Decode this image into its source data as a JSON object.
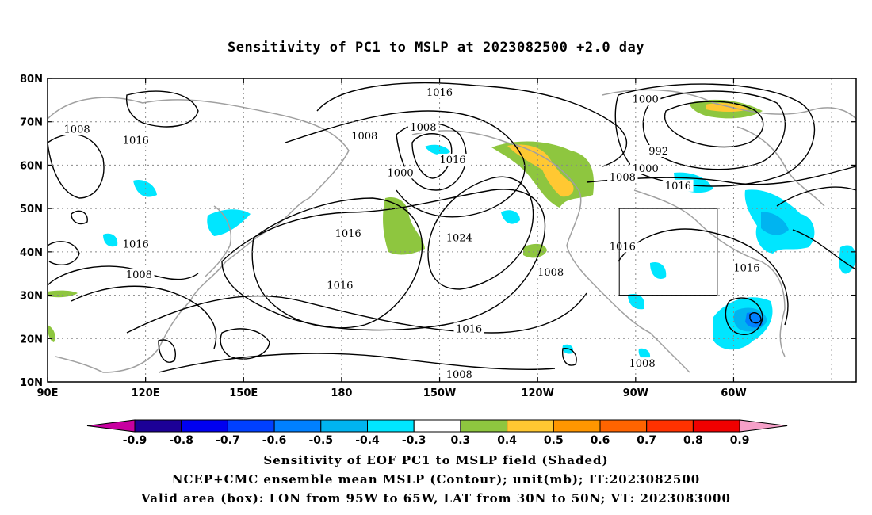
{
  "title": "Sensitivity of PC1 to MSLP at 2023082500 +2.0 day",
  "lat_labels": [
    "80N",
    "70N",
    "60N",
    "50N",
    "40N",
    "30N",
    "20N",
    "10N"
  ],
  "lon_labels": [
    "90E",
    "120E",
    "150E",
    "180",
    "150W",
    "120W",
    "90W",
    "60W"
  ],
  "contour_labels": [
    {
      "text": "1016",
      "lon": -150,
      "lat": 76.5
    },
    {
      "text": "1008",
      "lon": -155,
      "lat": 68.5
    },
    {
      "text": "1008",
      "lon": -173,
      "lat": 66.5
    },
    {
      "text": "1000",
      "lon": -162,
      "lat": 58
    },
    {
      "text": "1016",
      "lon": -146,
      "lat": 61
    },
    {
      "text": "1024",
      "lon": -144,
      "lat": 43
    },
    {
      "text": "1008",
      "lon": 99,
      "lat": 68
    },
    {
      "text": "1016",
      "lon": 117,
      "lat": 65.5
    },
    {
      "text": "1016",
      "lon": 117,
      "lat": 41.5
    },
    {
      "text": "1008",
      "lon": 118,
      "lat": 34.5
    },
    {
      "text": "1016",
      "lon": -178,
      "lat": 44
    },
    {
      "text": "1016",
      "lon": -180.5,
      "lat": 32
    },
    {
      "text": "1016",
      "lon": -141,
      "lat": 22
    },
    {
      "text": "1008",
      "lon": -144,
      "lat": 11.5
    },
    {
      "text": "1008",
      "lon": -116,
      "lat": 35
    },
    {
      "text": "1000",
      "lon": -87,
      "lat": 75
    },
    {
      "text": "992",
      "lon": -83,
      "lat": 63
    },
    {
      "text": "1000",
      "lon": -87,
      "lat": 59
    },
    {
      "text": "1008",
      "lon": -94,
      "lat": 57
    },
    {
      "text": "1016",
      "lon": -77,
      "lat": 55
    },
    {
      "text": "1016",
      "lon": -94,
      "lat": 41
    },
    {
      "text": "1016",
      "lon": -56,
      "lat": 36
    },
    {
      "text": "1008",
      "lon": -88,
      "lat": 14
    }
  ],
  "valid_box": {
    "lon_from": -95,
    "lon_to": -65,
    "lat_from": 30,
    "lat_to": 50
  },
  "colorbar": {
    "labels": [
      "-0.9",
      "-0.8",
      "-0.7",
      "-0.6",
      "-0.5",
      "-0.4",
      "-0.3",
      "0.3",
      "0.4",
      "0.5",
      "0.6",
      "0.7",
      "0.8",
      "0.9"
    ],
    "colors": [
      "#1c0096",
      "#0000f0",
      "#0040ff",
      "#0080ff",
      "#00b4f0",
      "#00e6ff",
      "#ffffff",
      "#8ec63f",
      "#ffc832",
      "#ff9600",
      "#ff6400",
      "#ff3200",
      "#f00000"
    ],
    "left_tip": "#c800a0",
    "right_tip": "#f5a0c8"
  },
  "captions": [
    "Sensitivity of EOF PC1 to MSLP field (Shaded)",
    "NCEP+CMC ensemble mean MSLP (Contour); unit(mb); IT:2023082500",
    "Valid area (box): LON from 95W to 65W, LAT from 30N to 50N; VT: 2023083000"
  ]
}
